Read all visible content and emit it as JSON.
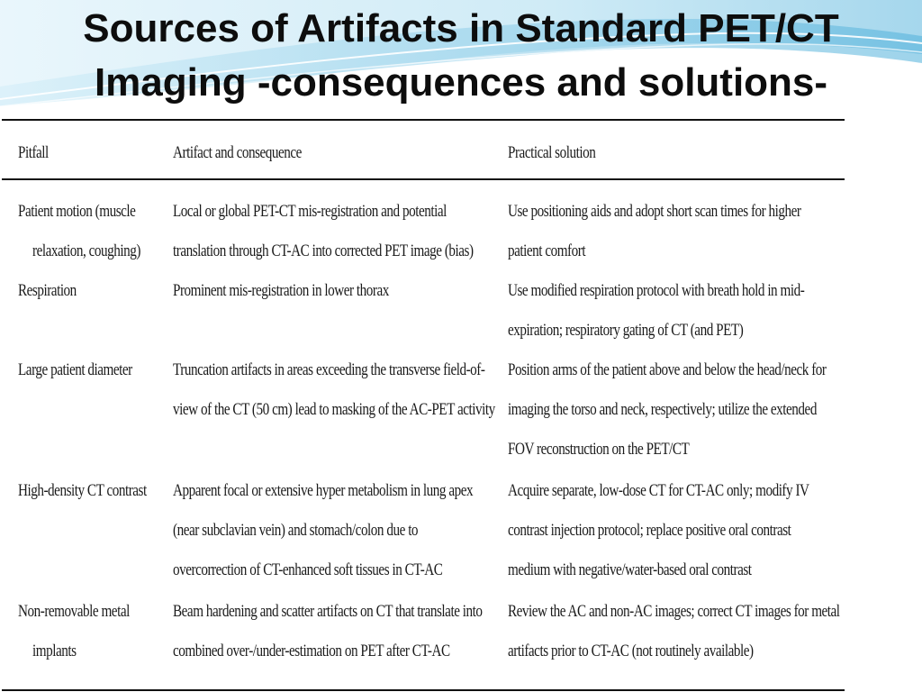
{
  "title": {
    "line1": "Sources of Artifacts in Standard PET/CT",
    "line2": "Imaging -consequences and solutions-"
  },
  "table": {
    "headers": [
      "Pitfall",
      "Artifact and consequence",
      "Practical solution"
    ],
    "rows": [
      {
        "pitfall": [
          "Patient motion (muscle",
          "relaxation, coughing)"
        ],
        "artifact": [
          "Local or global PET-CT mis-registration and potential",
          "translation through CT-AC into corrected PET image (bias)"
        ],
        "solution": [
          "Use positioning aids and adopt short scan times for higher",
          "patient comfort"
        ]
      },
      {
        "pitfall": [
          "Respiration"
        ],
        "artifact": [
          "Prominent mis-registration in lower thorax"
        ],
        "solution": [
          "Use modified respiration protocol with breath hold in mid-",
          "expiration; respiratory gating of CT (and PET)"
        ]
      },
      {
        "pitfall": [
          "Large patient diameter"
        ],
        "artifact": [
          "Truncation artifacts in areas exceeding the transverse field-of-",
          "view of the CT (50 cm) lead to masking of the AC-PET activity"
        ],
        "solution": [
          "Position arms of the patient above and below the head/neck for",
          "imaging the torso and neck, respectively; utilize the extended",
          "FOV reconstruction on the PET/CT"
        ]
      },
      {
        "pitfall": [
          "High-density CT contrast"
        ],
        "artifact": [
          "Apparent focal or extensive hyper metabolism in lung apex",
          "(near subclavian vein) and stomach/colon due to",
          "overcorrection of CT-enhanced soft tissues in CT-AC"
        ],
        "solution": [
          "Acquire separate, low-dose CT for CT-AC only; modify IV",
          "contrast injection protocol; replace positive oral contrast",
          "medium with negative/water-based oral contrast"
        ]
      },
      {
        "pitfall": [
          "Non-removable metal",
          "implants"
        ],
        "artifact": [
          "Beam hardening and scatter artifacts on CT that translate into",
          "combined over-/under-estimation on PET after CT-AC"
        ],
        "solution": [
          "Review the AC and non-AC images; correct CT images for metal",
          "artifacts prior to CT-AC (not routinely available)"
        ]
      }
    ]
  },
  "colors": {
    "background": "#ffffff",
    "accent_light": "#bfe3f2",
    "accent_mid": "#7cc4e4",
    "accent_dark": "#3aa3d1",
    "text": "#1a1a1a"
  }
}
